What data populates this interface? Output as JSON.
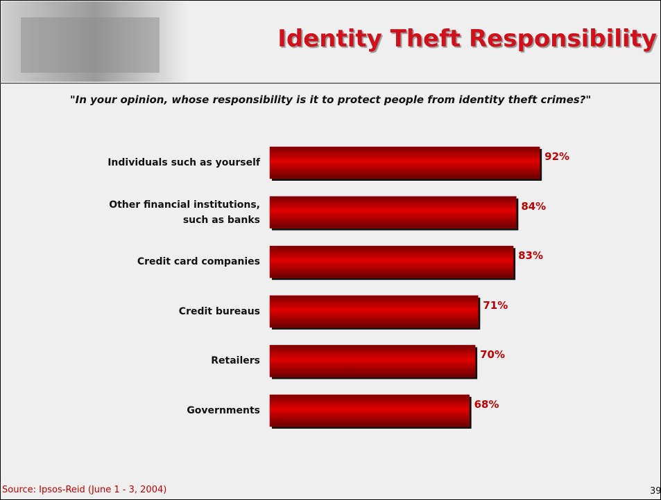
{
  "chart_data": {
    "type": "hbar",
    "title": "Identity Theft Responsibility",
    "subtitle": "\"In your opinion, whose responsibility is it to protect people from identity theft crimes?\"",
    "categories": [
      "Individuals such as yourself",
      "Other financial institutions,\nsuch as banks",
      "Credit card companies",
      "Credit bureaus",
      "Retailers",
      "Governments"
    ],
    "values": [
      92,
      84,
      83,
      71,
      70,
      68
    ],
    "value_labels": [
      "92%",
      "84%",
      "83%",
      "71%",
      "70%",
      "68%"
    ],
    "color": "#c00000",
    "source": "Source: Ipsos-Reid (June 1 - 3, 2004)",
    "page_number": "39"
  }
}
